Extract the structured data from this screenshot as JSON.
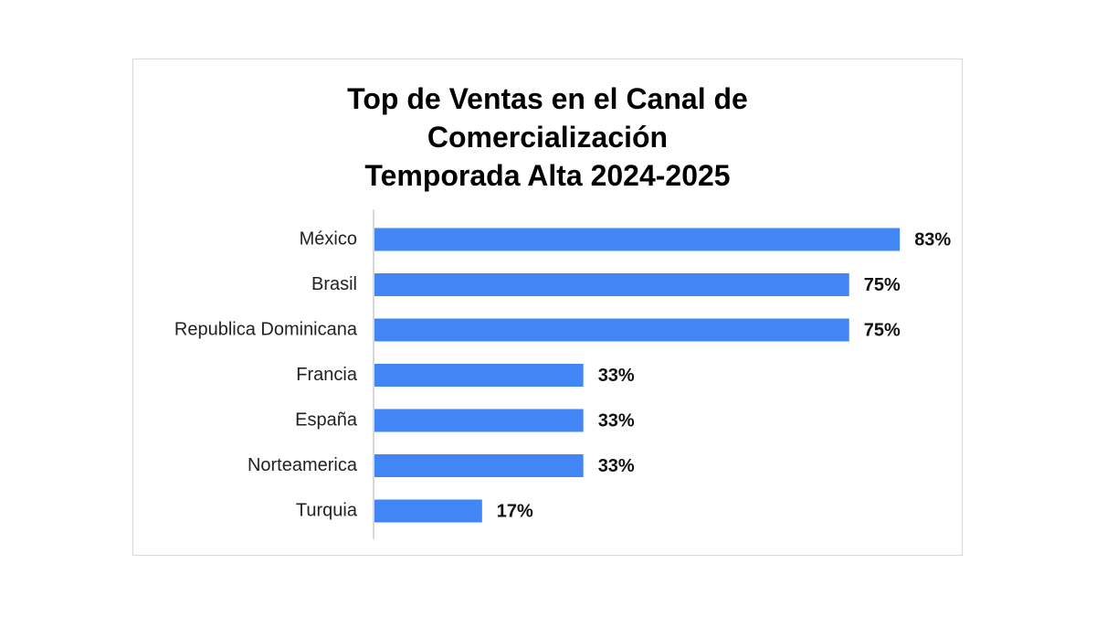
{
  "chart_data": {
    "type": "bar",
    "orientation": "horizontal",
    "title_lines": [
      "Top de Ventas en el Canal de",
      "Comercialización",
      "Temporada Alta 2024-2025"
    ],
    "categories": [
      "México",
      "Brasil",
      "Republica Dominicana",
      "Francia",
      "España",
      "Norteamerica",
      "Turquia"
    ],
    "values": [
      83,
      75,
      75,
      33,
      33,
      33,
      17
    ],
    "value_labels": [
      "83%",
      "75%",
      "75%",
      "33%",
      "33%",
      "33%",
      "17%"
    ],
    "xlim": [
      0,
      100
    ],
    "grid": false,
    "legend": "none",
    "bar_color": "#4285f4",
    "axis_color": "#cccccc"
  }
}
